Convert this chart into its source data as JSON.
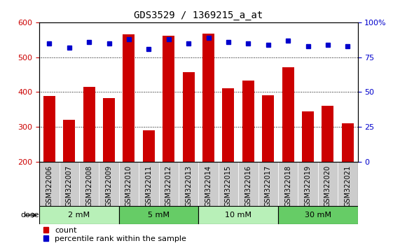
{
  "title": "GDS3529 / 1369215_a_at",
  "samples": [
    "GSM322006",
    "GSM322007",
    "GSM322008",
    "GSM322009",
    "GSM322010",
    "GSM322011",
    "GSM322012",
    "GSM322013",
    "GSM322014",
    "GSM322015",
    "GSM322016",
    "GSM322017",
    "GSM322018",
    "GSM322019",
    "GSM322020",
    "GSM322021"
  ],
  "counts": [
    388,
    320,
    414,
    382,
    566,
    290,
    562,
    457,
    567,
    411,
    434,
    390,
    472,
    345,
    361,
    311
  ],
  "percentiles": [
    85,
    82,
    86,
    85,
    88,
    81,
    88,
    85,
    89,
    86,
    85,
    84,
    87,
    83,
    84,
    83
  ],
  "ylim_left": [
    200,
    600
  ],
  "ylim_right": [
    0,
    100
  ],
  "yticks_left": [
    200,
    300,
    400,
    500,
    600
  ],
  "yticks_right": [
    0,
    25,
    50,
    75,
    100
  ],
  "bar_color": "#cc0000",
  "dot_color": "#0000cc",
  "doses": [
    {
      "label": "2 mM",
      "start": 0,
      "end": 4,
      "color_light": "#ccffcc",
      "color_dark": "#99ee99"
    },
    {
      "label": "5 mM",
      "start": 4,
      "end": 8,
      "color_light": "#99ee99",
      "color_dark": "#ccffcc"
    },
    {
      "label": "10 mM",
      "start": 8,
      "end": 12,
      "color_light": "#ccffcc",
      "color_dark": "#99ee99"
    },
    {
      "label": "30 mM",
      "start": 12,
      "end": 16,
      "color_light": "#99ee99",
      "color_dark": "#ccffcc"
    }
  ],
  "dose_colors": [
    "#ccffcc",
    "#88dd88",
    "#ccffcc",
    "#88dd88"
  ],
  "legend_count_label": "count",
  "legend_pct_label": "percentile rank within the sample",
  "dose_label": "dose",
  "tick_bg_color": "#cccccc",
  "dose_strip_colors": [
    "#bbeeaa",
    "#88cc88",
    "#bbeeaa",
    "#88cc88"
  ],
  "plot_bg_color": "#ffffff",
  "title_fontsize": 10,
  "tick_fontsize": 7,
  "bar_width": 0.6,
  "n": 16
}
